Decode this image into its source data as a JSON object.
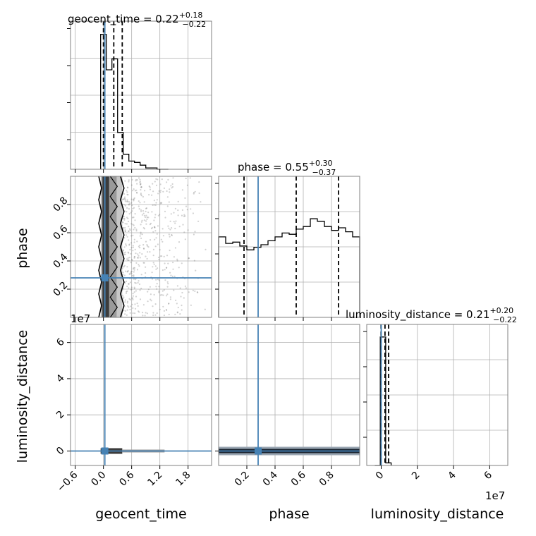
{
  "colors": {
    "truth": "#4682b4",
    "hist": "#000000",
    "grid": "#b0b0b0",
    "frame": "#808080",
    "scatter": "#7f7f7f"
  },
  "parameters": [
    "geocent_time",
    "phase",
    "luminosity_distance"
  ],
  "titles": {
    "geocent_time": {
      "lead": "geocent_time = 0.22",
      "sup": "+0.18",
      "sub": "−0.22"
    },
    "phase": {
      "lead": "phase = 0.55",
      "sup": "+0.30",
      "sub": "−0.37"
    },
    "luminosity_distance": {
      "lead": "luminosity_distance = 0.21",
      "sup": "+0.20",
      "sub": "−0.22"
    }
  },
  "axis_labels": {
    "geocent_time": "geocent_time",
    "phase": "phase",
    "luminosity_distance": "luminosity_distance"
  },
  "offset_labels": {
    "ld_left": "1e7",
    "ld_bottom": "1e7"
  },
  "chart_data": {
    "type": "corner",
    "truths": {
      "geocent_time": 0.03,
      "phase": 0.28,
      "luminosity_distance": 0.0
    },
    "ranges": {
      "geocent_time": [
        -0.7,
        2.3
      ],
      "phase": [
        0.0,
        1.0
      ],
      "luminosity_distance": [
        -0.8,
        7.0
      ]
    },
    "ticks": {
      "geocent_time": {
        "values": [
          -0.6,
          0.0,
          0.6,
          1.2,
          1.8
        ],
        "labels": [
          "−0.6",
          "0.0",
          "0.6",
          "1.2",
          "1.8"
        ]
      },
      "phase": {
        "values": [
          0.2,
          0.4,
          0.6,
          0.8
        ],
        "labels": [
          "0.2",
          "0.4",
          "0.6",
          "0.8"
        ]
      },
      "luminosity_distance": {
        "values": [
          0,
          2,
          4,
          6
        ],
        "labels": [
          "0",
          "2",
          "4",
          "6"
        ]
      }
    },
    "quantiles": {
      "geocent_time": [
        -0.0,
        0.22,
        0.4
      ],
      "phase": [
        0.18,
        0.55,
        0.85
      ],
      "luminosity_distance": [
        -0.01,
        0.21,
        0.41
      ]
    },
    "marginals": {
      "geocent_time": {
        "edges": [
          -0.06,
          0.06,
          0.18,
          0.3,
          0.42,
          0.54,
          0.66,
          0.78,
          0.9,
          1.02,
          1.14,
          1.26,
          1.38
        ],
        "counts": [
          0.99,
          0.73,
          0.81,
          0.27,
          0.11,
          0.06,
          0.05,
          0.03,
          0.01,
          0.01,
          0.0,
          0.0
        ]
      },
      "phase": {
        "edges": [
          0.0,
          0.05,
          0.1,
          0.15,
          0.2,
          0.25,
          0.3,
          0.35,
          0.4,
          0.45,
          0.5,
          0.55,
          0.6,
          0.65,
          0.7,
          0.75,
          0.8,
          0.85,
          0.9,
          0.95,
          1.0
        ],
        "counts": [
          0.62,
          0.57,
          0.58,
          0.55,
          0.52,
          0.54,
          0.56,
          0.59,
          0.62,
          0.65,
          0.64,
          0.68,
          0.7,
          0.76,
          0.74,
          0.7,
          0.67,
          0.69,
          0.66,
          0.62
        ]
      },
      "luminosity_distance": {
        "edges": [
          -0.35,
          -0.05,
          0.25,
          0.55
        ],
        "counts": [
          0.0,
          0.99,
          0.02
        ]
      }
    }
  }
}
